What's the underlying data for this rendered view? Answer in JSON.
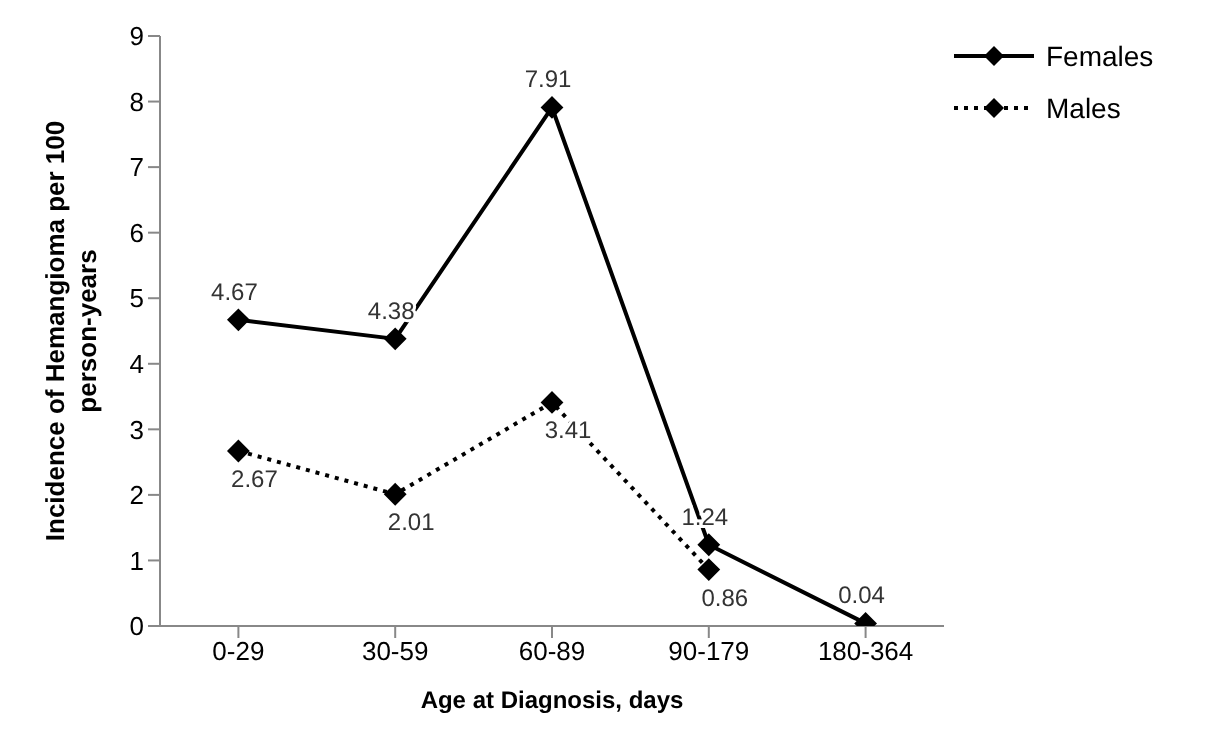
{
  "chart_data": {
    "type": "line",
    "xlabel": "Age at Diagnosis, days",
    "ylabel": "Incidence of Hemangioma per 100 person-years",
    "categories": [
      "0-29",
      "30-59",
      "60-89",
      "90-179",
      "180-364"
    ],
    "series": [
      {
        "name": "Females",
        "color": "#000000",
        "line_style": "solid",
        "values": [
          4.67,
          4.38,
          7.91,
          1.24,
          0.04
        ],
        "value_labels": [
          "4.67",
          "4.38",
          "7.91",
          "1.24",
          "0.04"
        ]
      },
      {
        "name": "Males",
        "color": "#000000",
        "line_style": "dotted",
        "values": [
          2.67,
          2.01,
          3.41,
          0.86,
          null
        ],
        "value_labels": [
          "2.67",
          "2.01",
          "3.41",
          "0.86",
          null
        ]
      }
    ],
    "ylim": [
      0,
      9
    ],
    "yticks": [
      0,
      1,
      2,
      3,
      4,
      5,
      6,
      7,
      8,
      9
    ],
    "marker": "diamond",
    "legend": "top right"
  }
}
